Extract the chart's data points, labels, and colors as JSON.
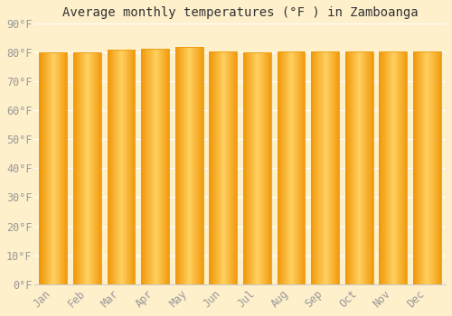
{
  "title": "Average monthly temperatures (°F ) in Zamboanga",
  "months": [
    "Jan",
    "Feb",
    "Mar",
    "Apr",
    "May",
    "Jun",
    "Jul",
    "Aug",
    "Sep",
    "Oct",
    "Nov",
    "Dec"
  ],
  "values": [
    80,
    80,
    81,
    81.5,
    82,
    80.5,
    80,
    80.5,
    80.5,
    80.5,
    80.5,
    80.5
  ],
  "bar_color_center": "#FFD060",
  "bar_color_edge": "#F0980A",
  "background_color": "#FFF0CC",
  "plot_bg_color": "#FFF0CC",
  "grid_color": "#FFFFFF",
  "text_color": "#999999",
  "title_color": "#333333",
  "spine_color": "#CCCCCC",
  "ylim": [
    0,
    90
  ],
  "ytick_step": 10,
  "title_fontsize": 10,
  "tick_fontsize": 8.5,
  "bar_width": 0.82
}
